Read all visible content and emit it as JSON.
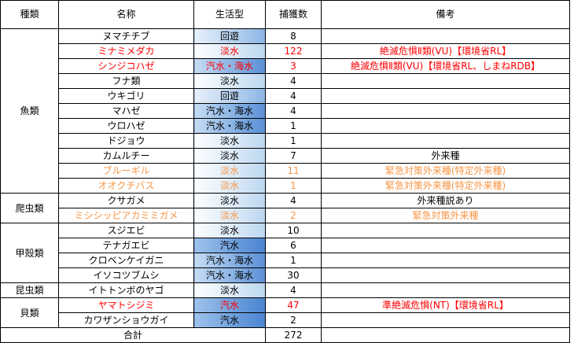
{
  "headers": {
    "group": "種類",
    "name": "名称",
    "habitat": "生活型",
    "count": "捕獲数",
    "remarks": "備考"
  },
  "colors": {
    "default_text": "#000000",
    "endangered_red": "#ff0000",
    "invasive_orange": "#f79646"
  },
  "rows": [
    {
      "group": "魚類",
      "name": "ヌマチチブ",
      "habitat": "回遊",
      "count": "8",
      "remark": "",
      "color": "#000000"
    },
    {
      "group": "",
      "name": "ミナミメダカ",
      "habitat": "淡水",
      "count": "122",
      "remark": "絶滅危惧Ⅱ類(VU)【環境省RL】",
      "color": "#ff0000"
    },
    {
      "group": "",
      "name": "シンジコハゼ",
      "habitat": "汽水・海水",
      "count": "3",
      "remark": "絶滅危惧Ⅱ類(VU)【環境省RL、しまねRDB】",
      "color": "#ff0000"
    },
    {
      "group": "",
      "name": "フナ類",
      "habitat": "淡水",
      "count": "4",
      "remark": "",
      "color": "#000000"
    },
    {
      "group": "",
      "name": "ウキゴリ",
      "habitat": "回遊",
      "count": "4",
      "remark": "",
      "color": "#000000"
    },
    {
      "group": "",
      "name": "マハゼ",
      "habitat": "汽水・海水",
      "count": "4",
      "remark": "",
      "color": "#000000"
    },
    {
      "group": "",
      "name": "ウロハゼ",
      "habitat": "汽水・海水",
      "count": "1",
      "remark": "",
      "color": "#000000"
    },
    {
      "group": "",
      "name": "ドジョウ",
      "habitat": "淡水",
      "count": "1",
      "remark": "",
      "color": "#000000"
    },
    {
      "group": "",
      "name": "カムルチー",
      "habitat": "淡水",
      "count": "7",
      "remark": "外来種",
      "color": "#000000"
    },
    {
      "group": "",
      "name": "ブルーギル",
      "habitat": "淡水",
      "count": "11",
      "remark": "緊急対策外来種(特定外来種)",
      "color": "#f79646"
    },
    {
      "group": "",
      "name": "オオクチバス",
      "habitat": "淡水",
      "count": "1",
      "remark": "緊急対策外来種(特定外来種)",
      "color": "#f79646"
    },
    {
      "group": "爬虫類",
      "name": "クサガメ",
      "habitat": "淡水",
      "count": "4",
      "remark": "外来種説あり",
      "color": "#000000"
    },
    {
      "group": "",
      "name": "ミシシッピアカミミガメ",
      "habitat": "淡水",
      "count": "2",
      "remark": "緊急対策外来種",
      "color": "#f79646"
    },
    {
      "group": "甲殻類",
      "name": "スジエビ",
      "habitat": "淡水",
      "count": "10",
      "remark": "",
      "color": "#000000"
    },
    {
      "group": "",
      "name": "テナガエビ",
      "habitat": "汽水",
      "count": "6",
      "remark": "",
      "color": "#000000"
    },
    {
      "group": "",
      "name": "クロベンケイガニ",
      "habitat": "汽水・海水",
      "count": "1",
      "remark": "",
      "color": "#000000"
    },
    {
      "group": "",
      "name": "イソコツブムシ",
      "habitat": "汽水・海水",
      "count": "30",
      "remark": "",
      "color": "#000000"
    },
    {
      "group": "昆虫類",
      "name": "イトトンボのヤゴ",
      "habitat": "淡水",
      "count": "4",
      "remark": "",
      "color": "#000000"
    },
    {
      "group": "貝類",
      "name": "ヤマトシジミ",
      "habitat": "汽水",
      "count": "47",
      "remark": "準絶滅危惧(NT)【環境省RL】",
      "color": "#ff0000"
    },
    {
      "group": "",
      "name": "カワザンショウガイ",
      "habitat": "汽水",
      "count": "2",
      "remark": "",
      "color": "#000000"
    }
  ],
  "total": {
    "label": "合計",
    "value": "272"
  }
}
